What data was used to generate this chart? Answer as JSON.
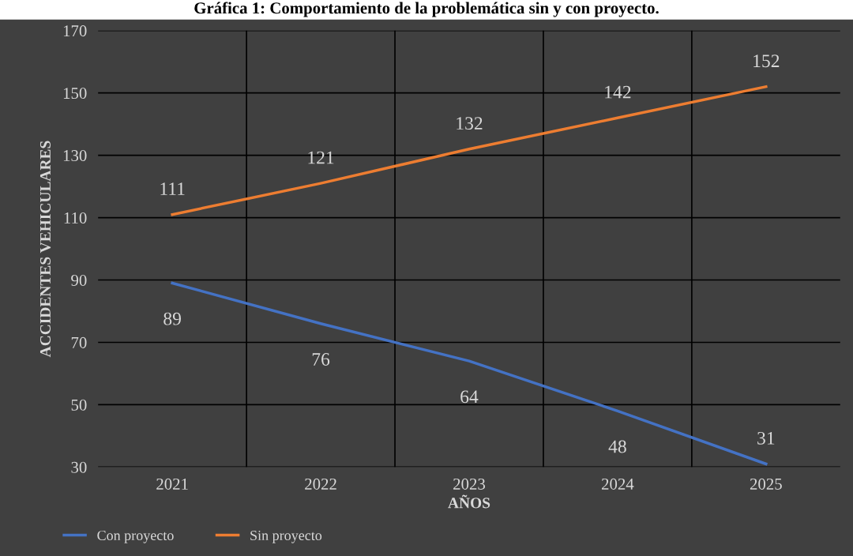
{
  "chart_data": {
    "type": "line",
    "title": "Gráfica 1: Comportamiento de la problemática sin y con proyecto.",
    "xlabel": "AÑOS",
    "ylabel": "ACCIDENTES VEHICULARES",
    "categories": [
      "2021",
      "2022",
      "2023",
      "2024",
      "2025"
    ],
    "series": [
      {
        "name": "Con proyecto",
        "color": "#4472c4",
        "values": [
          89,
          76,
          64,
          48,
          31
        ]
      },
      {
        "name": "Sin proyecto",
        "color": "#ed7d31",
        "values": [
          111,
          121,
          132,
          142,
          152
        ]
      }
    ],
    "ylim": [
      30,
      170
    ],
    "yticks": [
      30,
      50,
      70,
      90,
      110,
      130,
      150,
      170
    ],
    "grid": true,
    "legend": "bottom left",
    "data_labels": true,
    "marker": "none",
    "line_style": "solid"
  }
}
